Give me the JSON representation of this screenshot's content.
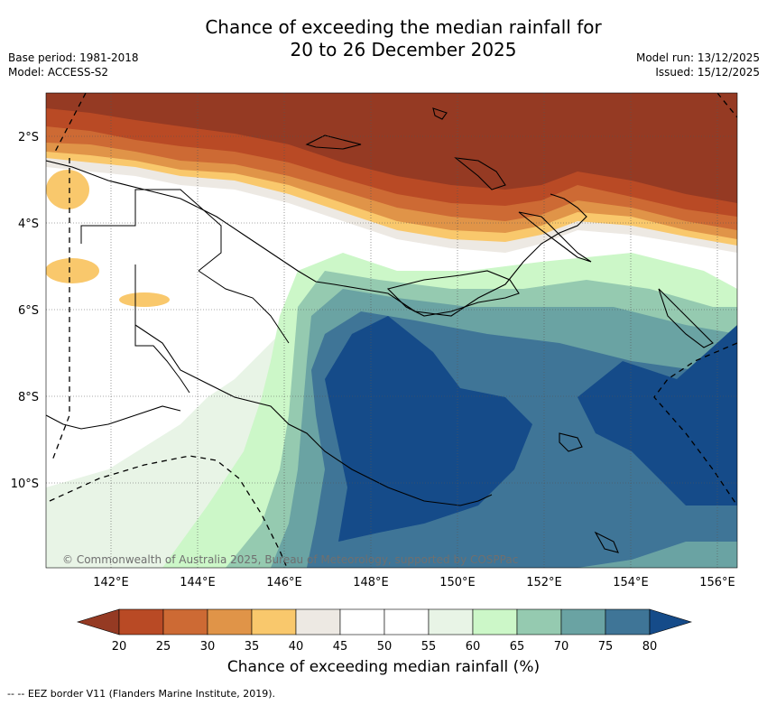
{
  "title_line1": "Chance of exceeding the median rainfall for",
  "title_line2": "20 to 26 December 2025",
  "meta": {
    "base_period": "Base period: 1981-2018",
    "model": "Model: ACCESS-S2",
    "model_run": "Model run: 13/12/2025",
    "issued": "Issued: 15/12/2025"
  },
  "map": {
    "lat_labels": [
      "2°S",
      "4°S",
      "6°S",
      "8°S",
      "10°S"
    ],
    "lon_labels": [
      "142°E",
      "144°E",
      "146°E",
      "148°E",
      "150°E",
      "152°E",
      "154°E",
      "156°E"
    ],
    "copyright": "© Commonwealth of Australia 2025, Bureau of Meteorology, supported by COSPPac"
  },
  "colorbar": {
    "ticks": [
      "20",
      "25",
      "30",
      "35",
      "40",
      "45",
      "50",
      "55",
      "60",
      "65",
      "70",
      "75",
      "80"
    ],
    "colors": [
      "#953a23",
      "#b94a25",
      "#cd6a34",
      "#e09448",
      "#f9c86c",
      "#ede9e3",
      "#ffffff",
      "#ffffff",
      "#e8f4e6",
      "#ccf7c8",
      "#95cab0",
      "#6aa3a3",
      "#3f7597",
      "#154b89"
    ],
    "title": "Chance of exceeding median rainfall (%)"
  },
  "footer": "--  --  EEZ border V11 (Flanders Marine Institute, 2019)."
}
